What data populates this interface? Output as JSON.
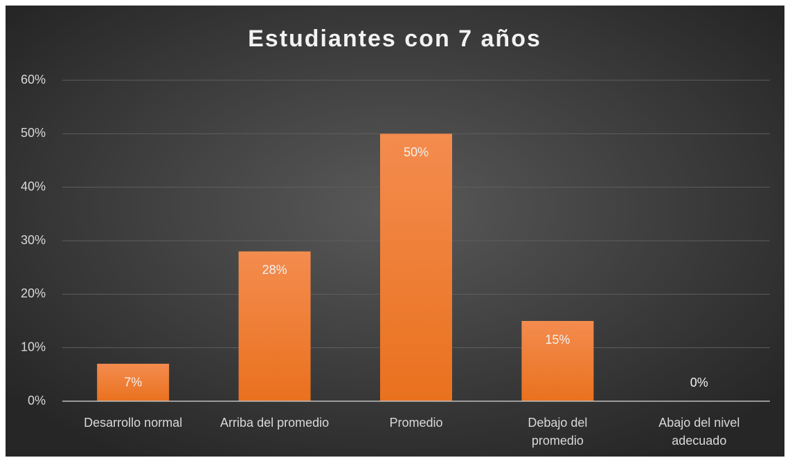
{
  "chart_data": {
    "type": "bar",
    "title": "Estudiantes con 7 años",
    "categories": [
      "Desarrollo normal",
      "Arriba del promedio",
      "Promedio",
      "Debajo del promedio",
      "Abajo del nivel adecuado"
    ],
    "values": [
      7,
      28,
      50,
      15,
      0
    ],
    "value_labels": [
      "7%",
      "28%",
      "50%",
      "15%",
      "0%"
    ],
    "color": "#ee7b30",
    "ylim": [
      0,
      60
    ],
    "yticks": [
      {
        "value": 0,
        "label": "0%"
      },
      {
        "value": 10,
        "label": "10%"
      },
      {
        "value": 20,
        "label": "20%"
      },
      {
        "value": 30,
        "label": "30%"
      },
      {
        "value": 40,
        "label": "40%"
      },
      {
        "value": 50,
        "label": "50%"
      },
      {
        "value": 60,
        "label": "60%"
      }
    ],
    "grid": true
  }
}
